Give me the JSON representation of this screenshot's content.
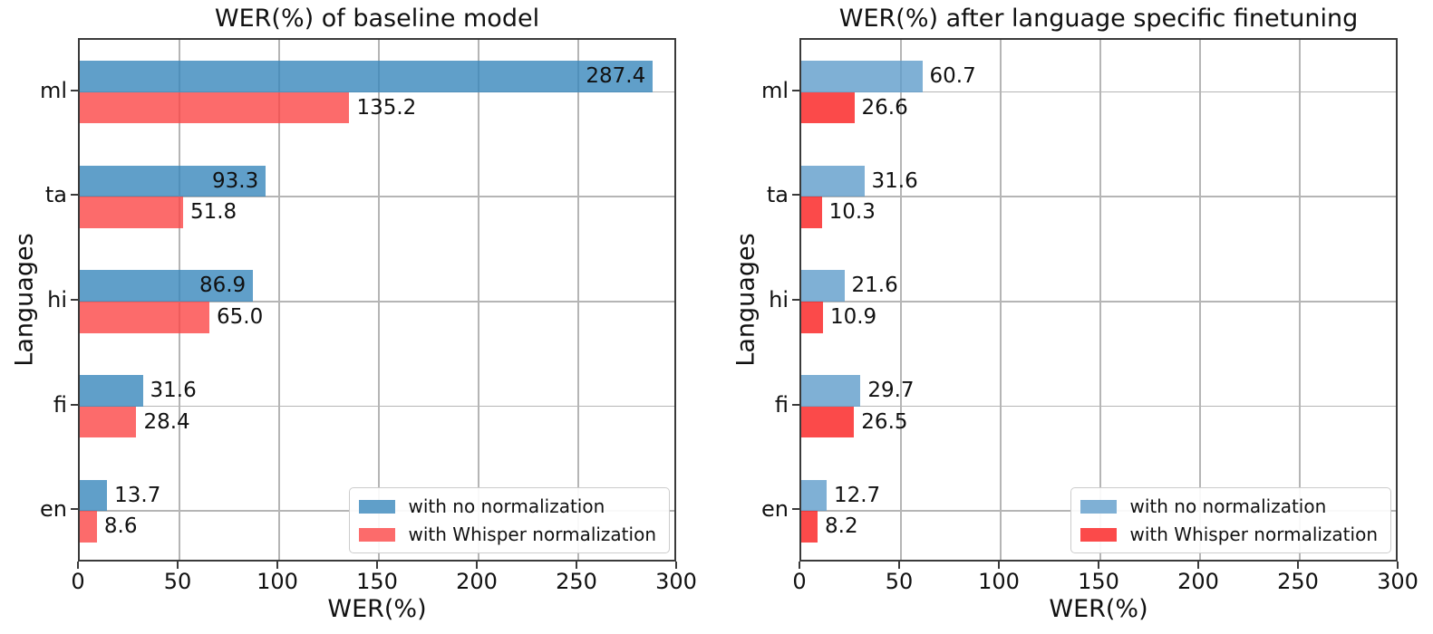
{
  "figure": {
    "background": "#ffffff",
    "text_color": "#111111",
    "grid_color": "#b5b5b5",
    "spine_color": "#3a3a3a"
  },
  "chart_data": [
    {
      "type": "bar",
      "orientation": "horizontal",
      "title": "WER(%) of baseline model",
      "xlabel": "WER(%)",
      "ylabel": "Languages",
      "categories": [
        "ml",
        "ta",
        "hi",
        "fi",
        "en"
      ],
      "series": [
        {
          "name": "with no normalization",
          "color": "#609fc9",
          "values": [
            287.4,
            93.3,
            86.9,
            31.6,
            13.7
          ],
          "label_inside": [
            true,
            true,
            true,
            false,
            false
          ]
        },
        {
          "name": "with Whisper normalization",
          "color": "#fc6b6b",
          "values": [
            135.2,
            51.8,
            65.0,
            28.4,
            8.6
          ],
          "label_inside": [
            false,
            false,
            false,
            false,
            false
          ]
        }
      ],
      "xlim": [
        0,
        300
      ],
      "xticks": [
        0,
        50,
        100,
        150,
        200,
        250,
        300
      ],
      "grid": true,
      "legend_position": "lower right"
    },
    {
      "type": "bar",
      "orientation": "horizontal",
      "title": "WER(%) after language specific finetuning",
      "xlabel": "WER(%)",
      "ylabel": "Languages",
      "categories": [
        "ml",
        "ta",
        "hi",
        "fi",
        "en"
      ],
      "series": [
        {
          "name": "with no normalization",
          "color": "#7fb0d5",
          "values": [
            60.7,
            31.6,
            21.6,
            29.7,
            12.7
          ],
          "label_inside": [
            false,
            false,
            false,
            false,
            false
          ]
        },
        {
          "name": "with Whisper normalization",
          "color": "#fb4a4a",
          "values": [
            26.6,
            10.3,
            10.9,
            26.5,
            8.2
          ],
          "label_inside": [
            false,
            false,
            false,
            false,
            false
          ]
        }
      ],
      "xlim": [
        0,
        300
      ],
      "xticks": [
        0,
        50,
        100,
        150,
        200,
        250,
        300
      ],
      "grid": true,
      "legend_position": "lower right"
    }
  ]
}
